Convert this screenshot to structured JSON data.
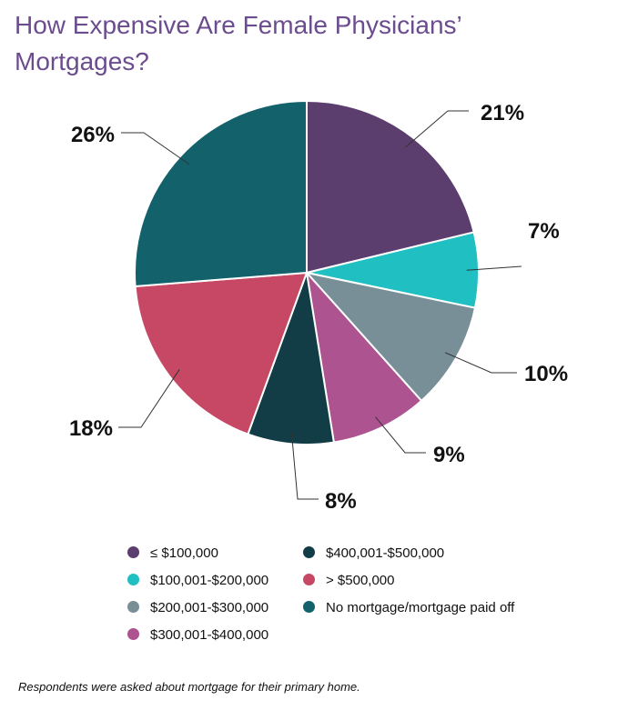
{
  "title": "How Expensive Are Female Physicians’ Mortgages?",
  "footnote": "Respondents were asked about mortgage for their primary home.",
  "chart_data": {
    "type": "pie",
    "title": "How Expensive Are Female Physicians’ Mortgages?",
    "slices": [
      {
        "label": "≤ $100,000",
        "value": 21,
        "display": "21%",
        "color": "#5b3d6e"
      },
      {
        "label": "$100,001-$200,000",
        "value": 7,
        "display": "7%",
        "color": "#20bfc1"
      },
      {
        "label": "$200,001-$300,000",
        "value": 10,
        "display": "10%",
        "color": "#788f98"
      },
      {
        "label": "$300,001-$400,000",
        "value": 9,
        "display": "9%",
        "color": "#ad5390"
      },
      {
        "label": "$400,001-$500,000",
        "value": 8,
        "display": "8%",
        "color": "#133d46"
      },
      {
        "label": "> $500,000",
        "value": 18,
        "display": "18%",
        "color": "#c64864"
      },
      {
        "label": "No mortgage/mortgage paid off",
        "value": 26,
        "display": "26%",
        "color": "#12616b"
      }
    ],
    "legend_placement": "bottom"
  }
}
